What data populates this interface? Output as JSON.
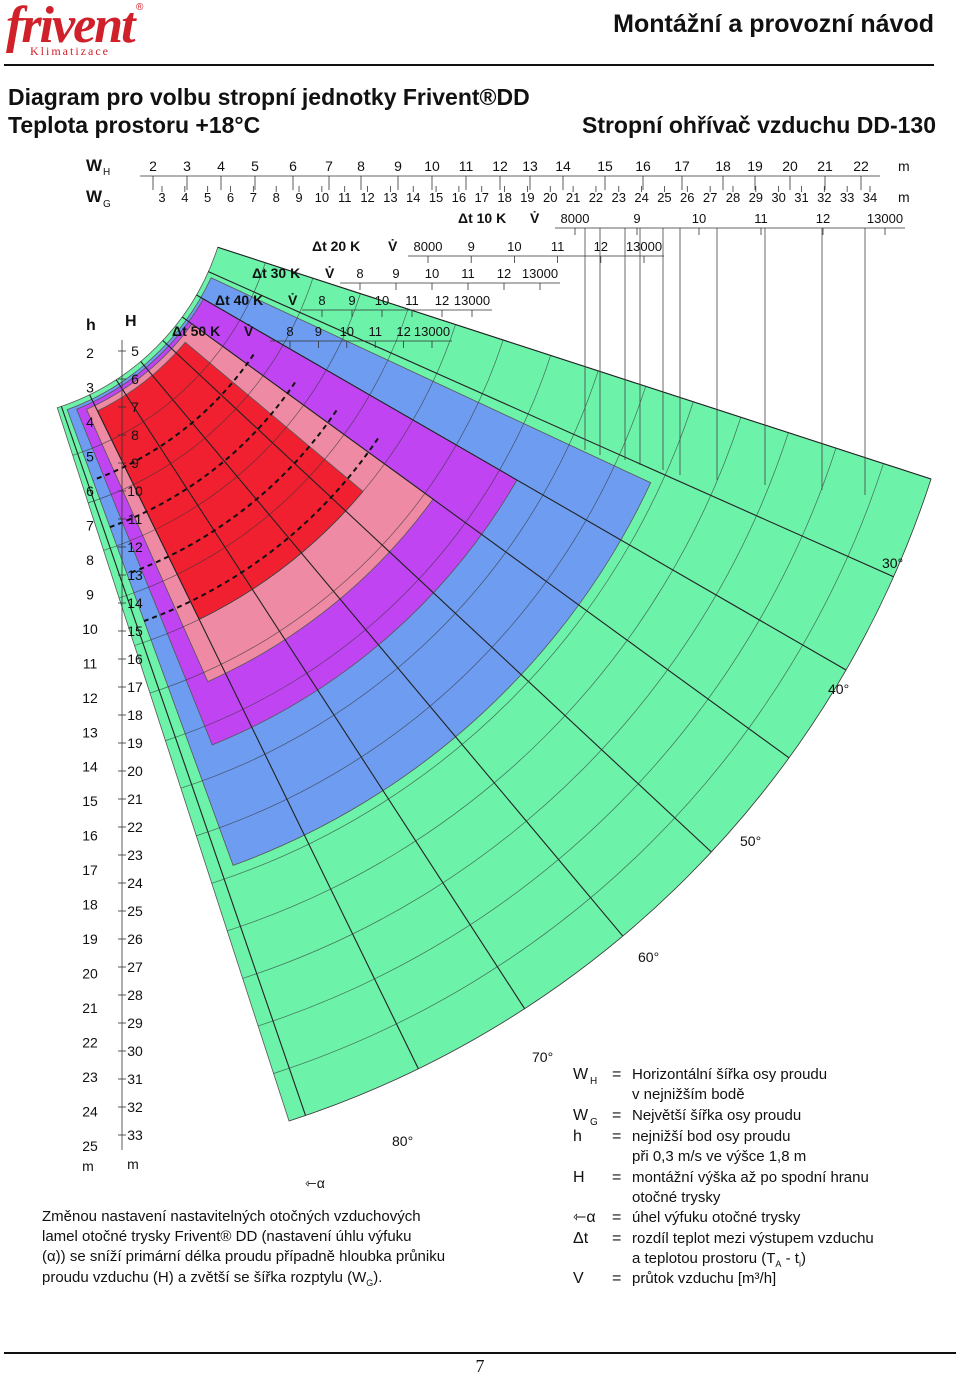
{
  "header": {
    "logo_word": "frivent",
    "logo_reg": "®",
    "logo_sub": "Klimatizace",
    "title": "Montážní a provozní návod"
  },
  "titles": {
    "line1": "Diagram pro volbu stropní jednotky Frivent®DD",
    "line2": "Teplota prostoru +18°C",
    "right": "Stropní ohřívač vzduchu DD-130"
  },
  "scales": {
    "wh_label": "W",
    "wh_sub": "H",
    "wh_ticks": [
      "2",
      "3",
      "4",
      "5",
      "6",
      "7",
      "8",
      "9",
      "10",
      "11",
      "12",
      "13",
      "14",
      "15",
      "16",
      "17",
      "18",
      "19",
      "20",
      "21",
      "22"
    ],
    "wg_label": "W",
    "wg_sub": "G",
    "wg_ticks": [
      "3",
      "4",
      "5",
      "6",
      "7",
      "8",
      "9",
      "10",
      "11",
      "12",
      "13",
      "14",
      "15",
      "16",
      "17",
      "18",
      "19",
      "20",
      "21",
      "22",
      "23",
      "24",
      "25",
      "26",
      "27",
      "28",
      "29",
      "30",
      "31",
      "32",
      "33",
      "34"
    ],
    "unit": "m",
    "h_label": "h",
    "H_label": "H",
    "h_ticks": [
      "2",
      "3",
      "4",
      "5",
      "6",
      "7",
      "8",
      "9",
      "10",
      "11",
      "12",
      "13",
      "14",
      "15",
      "16",
      "17",
      "18",
      "19",
      "20",
      "21",
      "22",
      "23",
      "24",
      "25"
    ],
    "H_ticks": [
      "5",
      "6",
      "7",
      "8",
      "9",
      "10",
      "11",
      "12",
      "13",
      "14",
      "15",
      "16",
      "17",
      "18",
      "19",
      "20",
      "21",
      "22",
      "23",
      "24",
      "25",
      "26",
      "27",
      "28",
      "29",
      "30",
      "31",
      "32",
      "33"
    ]
  },
  "flow_scales": [
    {
      "dt": "Δt 10 K",
      "v": "V̇",
      "ticks": [
        "8000",
        "9",
        "10",
        "11",
        "12",
        "13000"
      ],
      "color": "#6cf2a9"
    },
    {
      "dt": "Δt 20 K",
      "v": "V̇",
      "ticks": [
        "8000",
        "9",
        "10",
        "11",
        "12",
        "13000"
      ],
      "color": "#6d9cf0"
    },
    {
      "dt": "Δt 30 K",
      "v": "V̇",
      "ticks": [
        "8",
        "9",
        "10",
        "11",
        "12",
        "13000"
      ],
      "color": "#c144f2"
    },
    {
      "dt": "Δt 40 K",
      "v": "V̇",
      "ticks": [
        "8",
        "9",
        "10",
        "11",
        "12",
        "13000"
      ],
      "color": "#ef8aa4"
    },
    {
      "dt": "Δt 50 K",
      "v": "V̇",
      "ticks": [
        "8",
        "9",
        "10",
        "11",
        "12",
        "13000"
      ],
      "color": "#f02030"
    }
  ],
  "angle_labels": [
    "30°",
    "40°",
    "50°",
    "60°",
    "70°",
    "80°"
  ],
  "alpha_label": "⇽α",
  "legend": [
    {
      "sym": "W",
      "sub": "H",
      "eq": "=",
      "text": "Horizontální šířka osy proudu",
      "text2": "v nejnižším bodě"
    },
    {
      "sym": "W",
      "sub": "G",
      "eq": "=",
      "text": "Největší šířka osy proudu",
      "text2": ""
    },
    {
      "sym": "h",
      "sub": "",
      "eq": "=",
      "text": "nejnižší bod osy proudu",
      "text2": "při 0,3 m/s ve výšce 1,8 m"
    },
    {
      "sym": "H",
      "sub": "",
      "eq": "=",
      "text": "montážní výška až po spodní hranu",
      "text2": "otočné trysky"
    },
    {
      "sym": "⇽α",
      "sub": "",
      "eq": "=",
      "text": "úhel výfuku otočné trysky",
      "text2": ""
    },
    {
      "sym": "Δt",
      "sub": "",
      "eq": "=",
      "text": "rozdíl teplot mezi výstupem vzduchu",
      "text2": "a teplotou prostoru (T",
      "text2_sub": "A",
      "text2_end": " - t",
      "text2_sub2": "i",
      "text2_end2": ")"
    },
    {
      "sym": "V",
      "sub": "",
      "eq": "=",
      "text": "průtok vzduchu [m³/h]",
      "text2": ""
    }
  ],
  "note": [
    "Změnou nastavení nastavitelných otočných vzduchových",
    "lamel otočné trysky Frivent® DD  (nastavení úhlu výfuku",
    "(α)) se sníží primární délka proudu případně hloubka průniku",
    "proudu vzduchu (H) a zvětší se šířka rozptylu (W"
  ],
  "note_sub": "G",
  "note_end": ").",
  "page_number": "7"
}
